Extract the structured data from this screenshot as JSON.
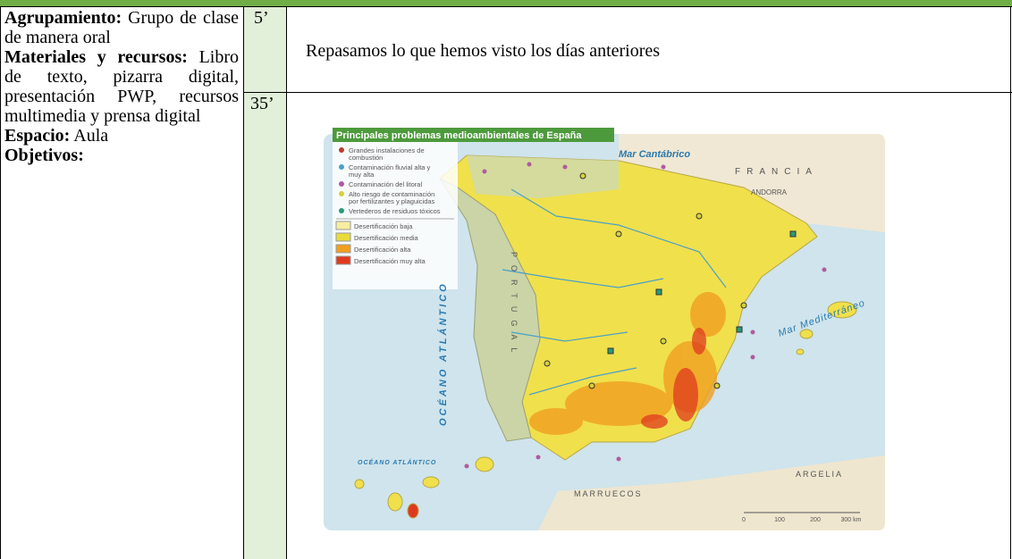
{
  "rows": [
    {
      "time": "5’",
      "activity": "Repasamos lo que hemos visto los días anteriores"
    },
    {
      "time": "35’"
    }
  ],
  "side": {
    "agrupamiento": {
      "label": "Agrupamiento:",
      "text": "Grupo de clase de manera oral"
    },
    "materiales": {
      "label": "Materiales y recursos:",
      "text": "Libro de texto, pizarra digital, presentación PWP, recursos multimedia y prensa digital"
    },
    "espacio": {
      "label": "Espacio:",
      "text": "Aula"
    },
    "objetivos": {
      "label": "Objetivos:"
    }
  },
  "map": {
    "title": "Principales problemas medioambientales de España",
    "legend": [
      {
        "lines": [
          "Grandes instalaciones de",
          "combustión"
        ]
      },
      {
        "lines": [
          "Contaminación fluvial alta y",
          "muy alta"
        ]
      },
      {
        "lines": [
          "Contaminación del litoral"
        ]
      },
      {
        "lines": [
          "Alto riesgo de contaminación",
          "por fertilizantes y plaguicidas"
        ]
      },
      {
        "lines": [
          "Vertederos de residuos tóxicos"
        ]
      },
      {
        "lines": [
          "Desertificación baja"
        ]
      },
      {
        "lines": [
          "Desertificación media"
        ]
      },
      {
        "lines": [
          "Desertificación alta"
        ]
      },
      {
        "lines": [
          "Desertificación muy alta"
        ]
      }
    ],
    "labels": {
      "cantabrico": "Mar Cantábrico",
      "francia": "FRANCIA",
      "andorra": "ANDORRA",
      "portugal": "PORTUGAL",
      "atlantico": "OCÉANO ATLÁNTICO",
      "atlantico2": "OCÉANO ATLÁNTICO",
      "mediterraneo": "Mar Mediterráneo",
      "argelia": "ARGELIA",
      "marruecos": "MARRUECOS"
    },
    "scale": [
      "0",
      "100",
      "200",
      "300 km"
    ]
  }
}
